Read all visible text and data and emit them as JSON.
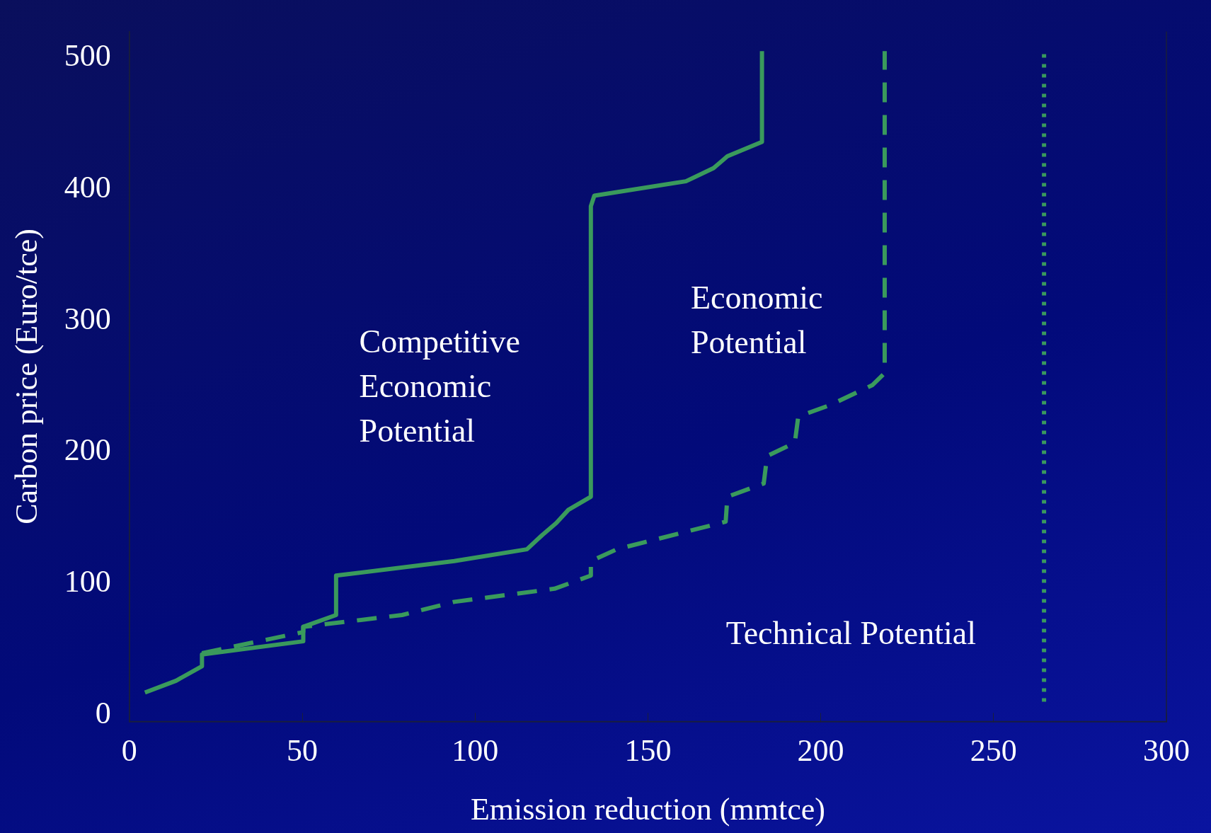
{
  "chart_data": {
    "type": "line",
    "xlabel": "Emission reduction (mmtce)",
    "ylabel": "Carbon price (Euro/tce)",
    "xlim": [
      0,
      300
    ],
    "xticks": [
      0,
      50,
      100,
      150,
      200,
      250,
      300
    ],
    "ylim": [
      -5,
      520
    ],
    "yticks": [
      0,
      100,
      200,
      300,
      400,
      500
    ],
    "grid": false,
    "legend": false,
    "marker": "none",
    "series": [
      {
        "name": "Competitive Economic Potential",
        "color": "#3a9a5c",
        "line_style": "solid",
        "x": [
          4.5,
          13.5,
          21,
          21,
          50.3,
          50.3,
          59.8,
          59.8,
          94,
          115,
          119.5,
          123.5,
          127,
          133.5,
          133.5,
          134.5,
          161,
          169,
          173,
          183,
          183
        ],
        "values": [
          17,
          26,
          37,
          46,
          56,
          67,
          76,
          106,
          117,
          126,
          137,
          146,
          156,
          166,
          387,
          395,
          406,
          416,
          425,
          436,
          505
        ]
      },
      {
        "name": "Economic Potential",
        "color": "#3a9a5c",
        "line_style": "dashed",
        "x": [
          21,
          50.3,
          50.3,
          78.9,
          94,
          123,
          133.5,
          133.5,
          141,
          172.5,
          173,
          183.5,
          184.5,
          192.5,
          193.5,
          203,
          215,
          218.5,
          218.5
        ],
        "values": [
          47,
          63,
          67,
          76,
          86,
          96,
          106,
          117,
          126,
          147,
          166,
          176,
          197,
          207,
          227,
          236,
          251,
          260,
          505
        ]
      },
      {
        "name": "Technical Potential",
        "color": "#3a9a5c",
        "line_style": "dotted",
        "x": [
          264.6,
          264.6
        ],
        "values": [
          10,
          505
        ]
      }
    ]
  }
}
